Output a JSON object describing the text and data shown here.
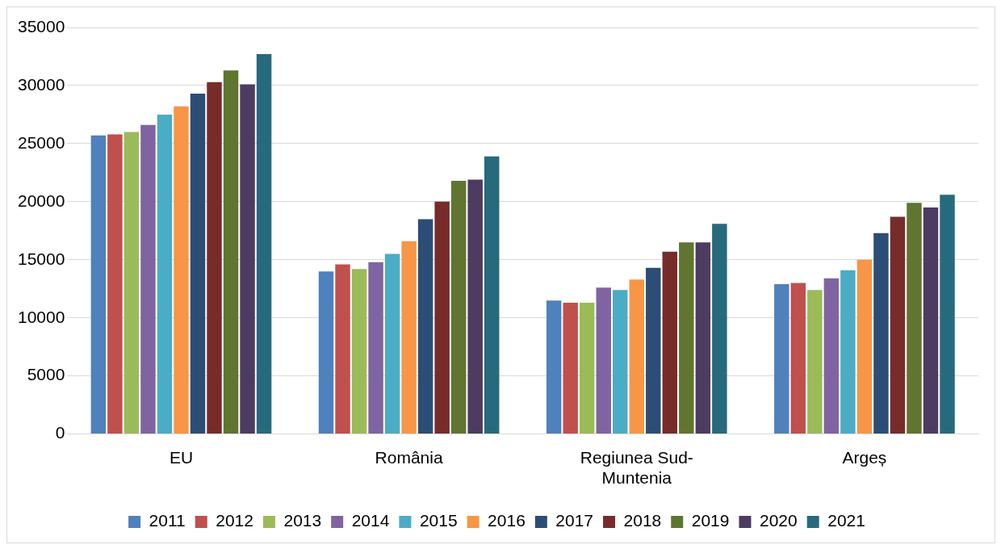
{
  "chart_data": {
    "type": "bar",
    "categories": [
      "EU",
      "România",
      "Regiunea Sud-Muntenia",
      "Argeș"
    ],
    "series": [
      {
        "name": "2011",
        "color": "#4f81bd",
        "values": [
          25700,
          14000,
          11500,
          12900
        ]
      },
      {
        "name": "2012",
        "color": "#c0504d",
        "values": [
          25800,
          14600,
          11300,
          13000
        ]
      },
      {
        "name": "2013",
        "color": "#9bbb59",
        "values": [
          26000,
          14200,
          11300,
          12400
        ]
      },
      {
        "name": "2014",
        "color": "#8064a2",
        "values": [
          26600,
          14800,
          12600,
          13400
        ]
      },
      {
        "name": "2015",
        "color": "#4bacc6",
        "values": [
          27500,
          15500,
          12400,
          14100
        ]
      },
      {
        "name": "2016",
        "color": "#f79646",
        "values": [
          28200,
          16600,
          13300,
          15000
        ]
      },
      {
        "name": "2017",
        "color": "#2c4d75",
        "values": [
          29300,
          18500,
          14300,
          17300
        ]
      },
      {
        "name": "2018",
        "color": "#772c2a",
        "values": [
          30300,
          20000,
          15700,
          18700
        ]
      },
      {
        "name": "2019",
        "color": "#5f7530",
        "values": [
          31300,
          21800,
          16500,
          19900
        ]
      },
      {
        "name": "2020",
        "color": "#4d3b62",
        "values": [
          30100,
          21900,
          16500,
          19500
        ]
      },
      {
        "name": "2021",
        "color": "#276a7c",
        "values": [
          32700,
          23900,
          18100,
          20600
        ]
      }
    ],
    "ylim": [
      0,
      35000
    ],
    "yticks": [
      0,
      5000,
      10000,
      15000,
      20000,
      25000,
      30000,
      35000
    ],
    "grid": "y",
    "legend": "bottom"
  }
}
